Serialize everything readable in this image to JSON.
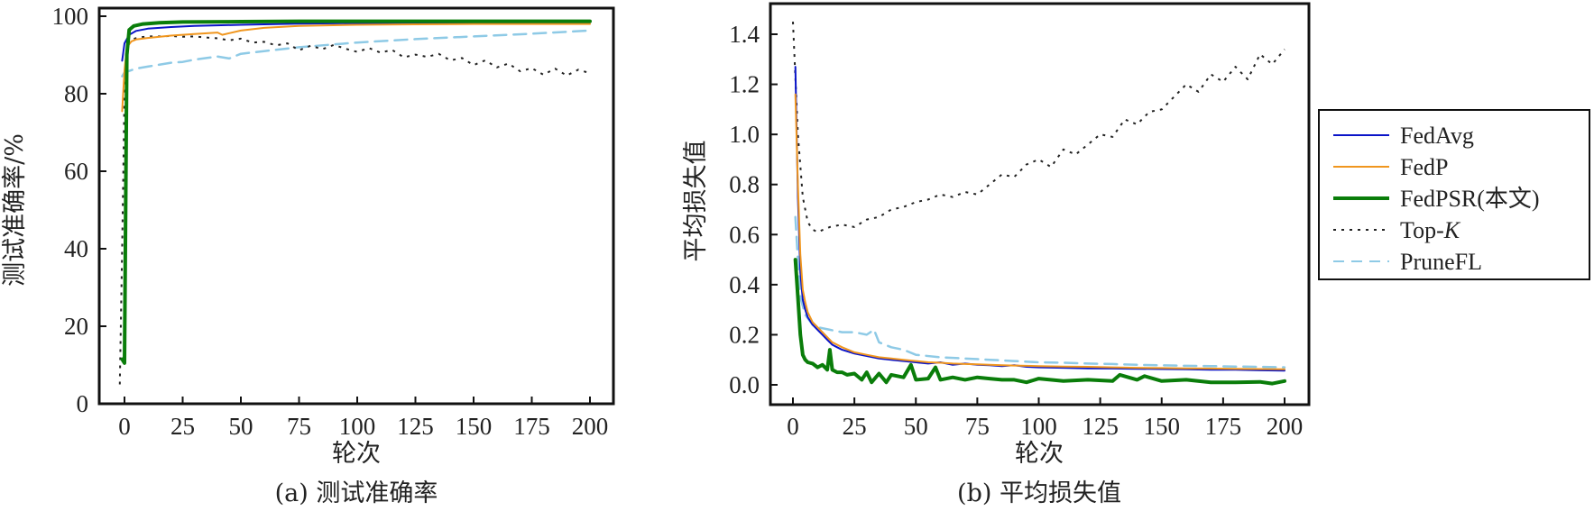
{
  "chart_data": [
    {
      "type": "line",
      "caption": "(a) 测试准确率",
      "xlabel": "轮次",
      "ylabel": "测试准确率/%",
      "xlim": [
        -11,
        211
      ],
      "ylim": [
        0,
        101
      ],
      "xticks": [
        0,
        25,
        50,
        75,
        100,
        125,
        150,
        175,
        200
      ],
      "yticks": [
        0,
        20,
        40,
        60,
        80,
        100
      ],
      "grid": false,
      "series": [
        {
          "name": "FedAvg",
          "color": "#0a14c8",
          "style": "solid",
          "width": 2,
          "x": [
            -1,
            0,
            2,
            5,
            10,
            20,
            30,
            50,
            75,
            100,
            125,
            150,
            175,
            200
          ],
          "values": [
            88.5,
            93,
            95.2,
            96.2,
            96.8,
            97.2,
            97.5,
            97.8,
            98.1,
            98.2,
            98.3,
            98.3,
            98.4,
            98.4
          ]
        },
        {
          "name": "FedP",
          "color": "#f0961e",
          "style": "solid",
          "width": 2,
          "x": [
            -1,
            0,
            1,
            3,
            5,
            10,
            20,
            30,
            40,
            42,
            50,
            60,
            75,
            100,
            125,
            150,
            175,
            200
          ],
          "values": [
            75.5,
            86,
            92,
            93.5,
            94,
            94.4,
            95,
            95.4,
            95.8,
            95.2,
            96.3,
            97,
            97.5,
            97.8,
            97.9,
            98,
            98,
            98
          ]
        },
        {
          "name": "FedPSR(本文)",
          "color": "#0a7d0a",
          "style": "solid",
          "width": 4,
          "x": [
            -1,
            0,
            1,
            2,
            4,
            8,
            15,
            25,
            50,
            75,
            100,
            125,
            150,
            175,
            200
          ],
          "values": [
            11.5,
            10.5,
            90,
            96.5,
            97.5,
            98,
            98.3,
            98.5,
            98.6,
            98.7,
            98.7,
            98.7,
            98.7,
            98.7,
            98.7
          ]
        },
        {
          "name": "Top-K",
          "color": "#222222",
          "style": "dotted",
          "width": 2,
          "x": [
            -2,
            -1,
            0,
            1,
            3,
            6,
            10,
            15,
            20,
            25,
            30,
            35,
            40,
            45,
            50,
            55,
            60,
            65,
            70,
            75,
            80,
            85,
            90,
            95,
            100,
            105,
            110,
            115,
            120,
            125,
            130,
            135,
            140,
            145,
            150,
            155,
            160,
            165,
            170,
            175,
            180,
            185,
            190,
            195,
            200
          ],
          "values": [
            5,
            40,
            80,
            92,
            94,
            94.5,
            94.8,
            94.8,
            94.9,
            94.7,
            94.8,
            94.5,
            94.3,
            93.8,
            94.2,
            93.2,
            93.4,
            92.5,
            93,
            91.2,
            92.4,
            91.5,
            92.6,
            91.6,
            90.8,
            91.8,
            90.6,
            91.3,
            89.4,
            90.1,
            89.5,
            90.3,
            88.6,
            89.2,
            87.4,
            88.6,
            86.8,
            87.8,
            85.8,
            86.6,
            84.9,
            86.5,
            84.7,
            86.2,
            85.3
          ]
        },
        {
          "name": "PruneFL",
          "color": "#8ecae6",
          "style": "dashed",
          "width": 2.5,
          "x": [
            -1,
            0,
            5,
            10,
            20,
            25,
            30,
            40,
            45,
            50,
            60,
            75,
            100,
            125,
            150,
            175,
            200
          ],
          "values": [
            84.5,
            85.5,
            86.5,
            87,
            88,
            88.2,
            88.8,
            89.6,
            89.1,
            90.3,
            91,
            92,
            93.2,
            94.1,
            94.8,
            95.5,
            96.3
          ]
        }
      ]
    },
    {
      "type": "line",
      "caption": "(b) 平均损失值",
      "xlabel": "轮次",
      "ylabel": "平均损失值",
      "xlim": [
        -9,
        209
      ],
      "ylim": [
        -0.08,
        1.54
      ],
      "xticks": [
        0,
        25,
        50,
        75,
        100,
        125,
        150,
        175,
        200
      ],
      "yticks": [
        0.0,
        0.2,
        0.4,
        0.6,
        0.8,
        1.0,
        1.2,
        1.4
      ],
      "ytick_labels": [
        "0.0",
        "0.2",
        "0.4",
        "0.6",
        "0.8",
        "1.0",
        "1.2",
        "1.4"
      ],
      "grid": false,
      "legend": "outside-right",
      "series": [
        {
          "name": "FedAvg",
          "color": "#0a14c8",
          "style": "solid",
          "width": 2,
          "x": [
            1,
            2,
            3,
            4,
            5,
            6,
            8,
            10,
            12,
            14,
            16,
            18,
            20,
            25,
            30,
            35,
            40,
            45,
            50,
            55,
            60,
            65,
            70,
            75,
            80,
            85,
            90,
            95,
            100,
            110,
            120,
            130,
            140,
            150,
            160,
            170,
            180,
            190,
            200
          ],
          "values": [
            1.27,
            0.75,
            0.45,
            0.34,
            0.3,
            0.27,
            0.24,
            0.22,
            0.2,
            0.18,
            0.16,
            0.15,
            0.14,
            0.125,
            0.115,
            0.105,
            0.1,
            0.095,
            0.09,
            0.085,
            0.09,
            0.08,
            0.085,
            0.08,
            0.078,
            0.075,
            0.078,
            0.072,
            0.07,
            0.068,
            0.066,
            0.065,
            0.064,
            0.063,
            0.062,
            0.06,
            0.06,
            0.058,
            0.057
          ]
        },
        {
          "name": "FedP",
          "color": "#f0961e",
          "style": "solid",
          "width": 2,
          "x": [
            1,
            2,
            3,
            4,
            5,
            6,
            8,
            10,
            12,
            14,
            16,
            18,
            20,
            25,
            30,
            35,
            40,
            45,
            50,
            55,
            60,
            65,
            70,
            75,
            80,
            85,
            90,
            95,
            100,
            110,
            120,
            130,
            140,
            150,
            160,
            170,
            180,
            190,
            200
          ],
          "values": [
            1.16,
            0.8,
            0.52,
            0.38,
            0.33,
            0.29,
            0.25,
            0.23,
            0.21,
            0.19,
            0.17,
            0.16,
            0.15,
            0.13,
            0.12,
            0.11,
            0.105,
            0.1,
            0.095,
            0.09,
            0.088,
            0.085,
            0.083,
            0.082,
            0.08,
            0.078,
            0.077,
            0.076,
            0.075,
            0.073,
            0.072,
            0.07,
            0.068,
            0.067,
            0.066,
            0.065,
            0.064,
            0.063,
            0.062
          ]
        },
        {
          "name": "FedPSR(本文)",
          "color": "#0a7d0a",
          "style": "solid",
          "width": 4,
          "x": [
            1,
            2,
            3,
            4,
            5,
            6,
            8,
            10,
            12,
            14,
            15,
            16,
            18,
            20,
            22,
            25,
            28,
            30,
            32,
            35,
            38,
            40,
            45,
            48,
            50,
            55,
            58,
            60,
            65,
            70,
            75,
            80,
            85,
            90,
            95,
            100,
            110,
            120,
            130,
            133,
            140,
            143,
            150,
            160,
            170,
            180,
            190,
            195,
            200
          ],
          "values": [
            0.5,
            0.35,
            0.2,
            0.12,
            0.1,
            0.09,
            0.085,
            0.07,
            0.08,
            0.06,
            0.14,
            0.06,
            0.05,
            0.05,
            0.04,
            0.045,
            0.02,
            0.05,
            0.01,
            0.045,
            0.01,
            0.04,
            0.03,
            0.08,
            0.02,
            0.025,
            0.07,
            0.02,
            0.03,
            0.02,
            0.03,
            0.025,
            0.02,
            0.02,
            0.01,
            0.025,
            0.015,
            0.02,
            0.015,
            0.04,
            0.02,
            0.035,
            0.015,
            0.02,
            0.01,
            0.01,
            0.012,
            0.005,
            0.015
          ]
        },
        {
          "name": "Top-K",
          "color": "#222222",
          "style": "dotted",
          "width": 2,
          "x": [
            0,
            2,
            4,
            6,
            8,
            10,
            15,
            20,
            25,
            30,
            35,
            40,
            45,
            50,
            55,
            60,
            65,
            70,
            75,
            80,
            85,
            90,
            95,
            100,
            105,
            110,
            115,
            120,
            125,
            130,
            135,
            140,
            145,
            150,
            155,
            160,
            165,
            170,
            175,
            180,
            185,
            190,
            195,
            200
          ],
          "values": [
            1.45,
            1.0,
            0.75,
            0.65,
            0.62,
            0.61,
            0.63,
            0.64,
            0.63,
            0.66,
            0.67,
            0.7,
            0.71,
            0.73,
            0.74,
            0.76,
            0.75,
            0.77,
            0.76,
            0.8,
            0.84,
            0.83,
            0.88,
            0.9,
            0.87,
            0.94,
            0.92,
            0.96,
            1.0,
            0.99,
            1.06,
            1.04,
            1.09,
            1.1,
            1.15,
            1.2,
            1.17,
            1.24,
            1.21,
            1.27,
            1.22,
            1.32,
            1.28,
            1.34
          ]
        },
        {
          "name": "PruneFL",
          "color": "#8ecae6",
          "style": "dashed",
          "width": 2.5,
          "x": [
            1,
            2,
            3,
            5,
            8,
            10,
            15,
            20,
            25,
            30,
            33,
            35,
            40,
            45,
            50,
            60,
            70,
            80,
            90,
            100,
            110,
            120,
            130,
            140,
            150,
            160,
            170,
            180,
            190,
            200
          ],
          "values": [
            0.67,
            0.5,
            0.35,
            0.28,
            0.24,
            0.23,
            0.22,
            0.21,
            0.21,
            0.2,
            0.22,
            0.17,
            0.15,
            0.14,
            0.12,
            0.11,
            0.105,
            0.1,
            0.095,
            0.09,
            0.088,
            0.085,
            0.083,
            0.08,
            0.078,
            0.076,
            0.075,
            0.073,
            0.072,
            0.07
          ]
        }
      ]
    }
  ],
  "legend": {
    "items": [
      {
        "label": "FedAvg",
        "color": "#0a14c8",
        "style": "solid"
      },
      {
        "label": "FedP",
        "color": "#f0961e",
        "style": "solid"
      },
      {
        "label": "FedPSR(本文)",
        "color": "#0a7d0a",
        "style": "solid"
      },
      {
        "label_main": "Top-",
        "label_italic": "K",
        "label": "Top-K",
        "color": "#222222",
        "style": "dotted"
      },
      {
        "label": "PruneFL",
        "color": "#8ecae6",
        "style": "dashed"
      }
    ]
  }
}
